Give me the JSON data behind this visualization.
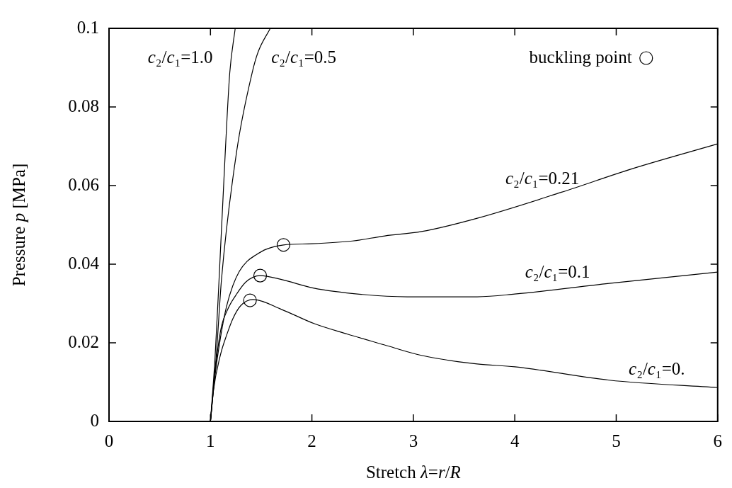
{
  "chart_data": {
    "type": "line",
    "xlabel": "Stretch λ=r/R",
    "ylabel": "Pressure p [MPa]",
    "xlim": [
      0,
      6
    ],
    "ylim": [
      0,
      0.1
    ],
    "xticks": [
      0,
      1,
      2,
      3,
      4,
      5,
      6
    ],
    "yticks": [
      0,
      0.02,
      0.04,
      0.06,
      0.08,
      0.1
    ],
    "grid": false,
    "legend": "top right",
    "marker": "none",
    "line_style": "solid",
    "series": [
      {
        "color": "#000000",
        "x": [
          1,
          1.046,
          1.085,
          1.147,
          1.19,
          1.244
        ],
        "values": [
          0,
          0.0166,
          0.0362,
          0.069,
          0.0886,
          0.1
        ]
      },
      {
        "color": "#000000",
        "x": [
          1,
          1.057,
          1.109,
          1.26,
          1.41,
          1.47,
          1.59
        ],
        "values": [
          0,
          0.0166,
          0.0362,
          0.069,
          0.0886,
          0.094,
          0.1
        ]
      },
      {
        "color": "#000000",
        "x": [
          1,
          1.043,
          1.1,
          1.158,
          1.22,
          1.285,
          1.36,
          1.445,
          1.55,
          1.72,
          2.0,
          2.4,
          2.72,
          3.08,
          3.63,
          4.46,
          5.16,
          6.0
        ],
        "values": [
          0,
          0.0112,
          0.0215,
          0.0292,
          0.0345,
          0.0382,
          0.0407,
          0.0423,
          0.0438,
          0.0449,
          0.0452,
          0.0459,
          0.0472,
          0.0483,
          0.0517,
          0.0583,
          0.0643,
          0.0706
        ]
      },
      {
        "color": "#000000",
        "x": [
          1,
          1.03,
          1.1,
          1.17,
          1.25,
          1.35,
          1.49,
          1.7,
          2.02,
          2.5,
          2.94,
          3.63,
          4.0,
          4.93,
          6.0
        ],
        "values": [
          0,
          0.009,
          0.0231,
          0.0285,
          0.0321,
          0.0355,
          0.0371,
          0.0361,
          0.0339,
          0.0323,
          0.0317,
          0.0317,
          0.0324,
          0.0351,
          0.038
        ]
      },
      {
        "color": "#000000",
        "x": [
          1,
          1.03,
          1.1,
          1.16,
          1.22,
          1.3,
          1.42,
          1.7,
          2.02,
          2.35,
          2.71,
          3.08,
          3.63,
          4.0,
          4.93,
          6.0
        ],
        "values": [
          0,
          0.008,
          0.0171,
          0.022,
          0.0261,
          0.0295,
          0.031,
          0.0285,
          0.0249,
          0.0222,
          0.0195,
          0.0168,
          0.0146,
          0.0139,
          0.0105,
          0.0086
        ]
      },
      {
        "type": "scatter",
        "name": "buckling point",
        "color": "#000000",
        "marker": "circle",
        "x": [
          1.72,
          1.49,
          1.39
        ],
        "values": [
          0.0449,
          0.0371,
          0.0308
        ]
      }
    ],
    "annotations": [
      "c₂/c₁=1.0",
      "c₂/c₁=0.5",
      "c₂/c₁=0.21",
      "c₂/c₁=0.1",
      "c₂/c₁=0."
    ]
  }
}
